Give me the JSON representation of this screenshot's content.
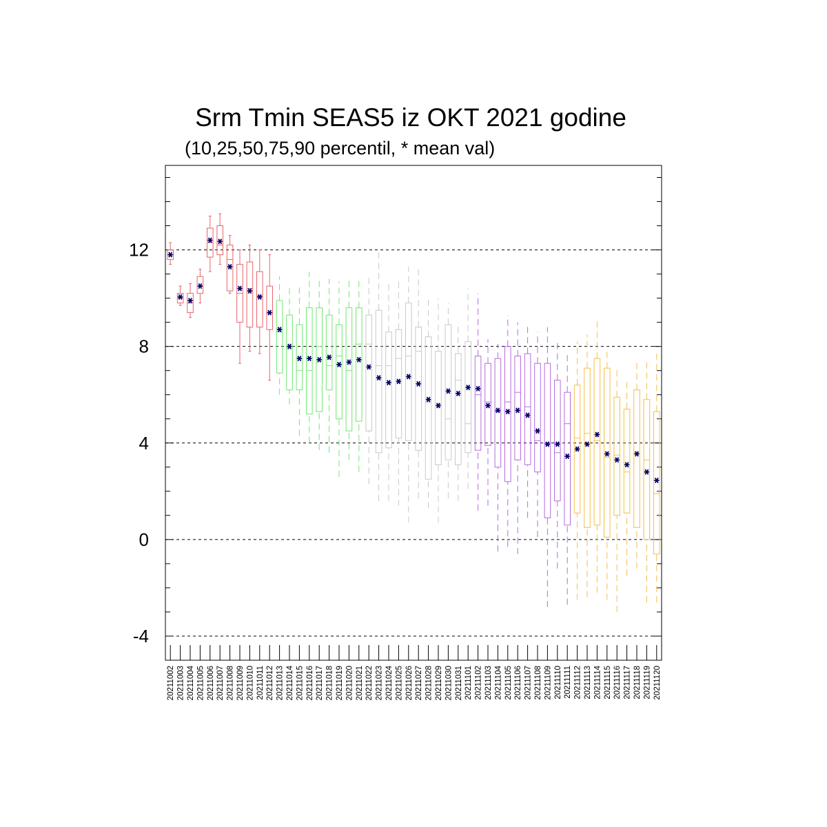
{
  "chart_data": {
    "type": "boxplot",
    "title": "Srm Tmin SEAS5 iz OKT 2021 godine",
    "subtitle": "(10,25,50,75,90 percentil, * mean val)",
    "xlabel": "",
    "ylabel": "",
    "ylim": [
      -5,
      15.5
    ],
    "y_ticks": [
      "-4",
      "0",
      "4",
      "8",
      "12"
    ],
    "y_tick_values": [
      -4,
      0,
      4,
      8,
      12
    ],
    "grid": "dashed horizontal lines at labeled ticks",
    "legend": "none",
    "colors": {
      "red": "#e8636b",
      "green": "#6fe86f",
      "grey": "#c8c8c8",
      "purple": "#b56ae0",
      "orange": "#f2be4b",
      "mean": "#000066",
      "axis": "#000000"
    },
    "groups": [
      {
        "color": "red",
        "style": "solid",
        "from": 0,
        "to": 10
      },
      {
        "color": "green",
        "style": "dashed",
        "from": 11,
        "to": 19
      },
      {
        "color": "grey",
        "style": "dashed",
        "from": 20,
        "to": 30
      },
      {
        "color": "purple",
        "style": "dashed",
        "from": 31,
        "to": 40
      },
      {
        "color": "orange",
        "style": "dashed",
        "from": 41,
        "to": 50
      }
    ],
    "categories": [
      "20211002",
      "20211003",
      "20211004",
      "20211005",
      "20211006",
      "20211007",
      "20211008",
      "20211009",
      "20211010",
      "20211011",
      "20211012",
      "20211013",
      "20211014",
      "20211015",
      "20211016",
      "20211017",
      "20211018",
      "20211019",
      "20211020",
      "20211021",
      "20211022",
      "20211023",
      "20211024",
      "20211025",
      "20211026",
      "20211027",
      "20211028",
      "20211029",
      "20211030",
      "20211031",
      "20211101",
      "20211102",
      "20211103",
      "20211104",
      "20211105",
      "20211106",
      "20211107",
      "20211108",
      "20211109",
      "20211110",
      "20211111",
      "20211112",
      "20211113",
      "20211114",
      "20211115",
      "20211116",
      "20211117",
      "20211118",
      "20211119",
      "20211120"
    ],
    "series": [
      {
        "p10": [
          11.4,
          9.7,
          9.2,
          9.8,
          11.1,
          11.4,
          10.2,
          7.3,
          7.8,
          7.7,
          6.6,
          6.0,
          5.6,
          4.3,
          4.0,
          3.7,
          3.6,
          2.6,
          3.3,
          2.8,
          2.3,
          1.6,
          1.6,
          1.4,
          0.7,
          1.7,
          1.3,
          0.7,
          1.7,
          1.6,
          2.1,
          1.2,
          1.4,
          -0.5,
          -0.3,
          -0.6,
          0.9,
          0.1,
          -2.8,
          -1.2,
          -2.7,
          -2.5,
          -2.4,
          -2.2,
          -2.5,
          -3.0,
          -1.5,
          -1.2,
          -2.6,
          -2.6
        ],
        "p25": [
          11.6,
          9.8,
          9.4,
          10.2,
          11.7,
          11.8,
          10.3,
          9.0,
          8.8,
          8.8,
          8.7,
          6.9,
          6.2,
          6.2,
          5.2,
          5.3,
          6.2,
          5.0,
          4.5,
          4.9,
          4.5,
          3.6,
          3.8,
          4.2,
          4.1,
          3.7,
          2.5,
          3.1,
          3.3,
          3.1,
          3.6,
          3.7,
          3.9,
          3.0,
          2.4,
          3.3,
          3.1,
          2.8,
          0.9,
          1.6,
          0.6,
          1.1,
          0.5,
          0.6,
          0.1,
          1.0,
          1.1,
          0.5,
          0.0,
          -0.6
        ],
        "p50": [
          11.8,
          10.0,
          9.8,
          10.5,
          12.3,
          12.2,
          11.6,
          10.2,
          10.4,
          10.1,
          9.4,
          8.6,
          7.9,
          7.0,
          7.0,
          8.0,
          7.2,
          7.6,
          7.0,
          8.1,
          8.1,
          7.2,
          7.2,
          7.5,
          7.6,
          7.8,
          5.7,
          5.6,
          5.0,
          6.6,
          4.8,
          6.0,
          5.7,
          5.3,
          5.7,
          6.1,
          5.5,
          4.1,
          4.0,
          3.6,
          4.8,
          4.2,
          4.4,
          4.1,
          3.4,
          3.5,
          2.8,
          3.6,
          3.3,
          1.9
        ],
        "p75": [
          12.0,
          10.2,
          10.2,
          10.9,
          12.9,
          13.0,
          12.2,
          11.4,
          11.5,
          11.1,
          10.5,
          9.9,
          9.3,
          8.9,
          9.6,
          9.6,
          9.3,
          8.9,
          9.6,
          9.6,
          9.3,
          9.5,
          8.6,
          8.7,
          9.8,
          8.8,
          8.4,
          7.8,
          8.9,
          7.7,
          8.2,
          7.6,
          7.3,
          7.5,
          8.0,
          7.6,
          7.7,
          7.3,
          7.3,
          6.6,
          6.1,
          6.4,
          7.1,
          7.5,
          7.1,
          5.9,
          5.4,
          6.2,
          5.8,
          5.3
        ],
        "p90": [
          12.3,
          10.5,
          10.6,
          11.2,
          13.4,
          13.5,
          12.6,
          12.0,
          12.2,
          12.0,
          11.8,
          10.9,
          10.5,
          10.5,
          11.1,
          10.9,
          10.8,
          10.7,
          10.9,
          10.8,
          10.9,
          11.9,
          10.7,
          10.8,
          11.3,
          11.2,
          10.0,
          10.0,
          9.8,
          9.0,
          10.4,
          10.2,
          8.3,
          8.1,
          9.3,
          9.0,
          8.9,
          8.6,
          8.8,
          8.3,
          7.8,
          8.2,
          8.5,
          9.2,
          8.0,
          7.1,
          6.6,
          7.5,
          7.4,
          7.7
        ],
        "mean": [
          11.8,
          10.05,
          9.9,
          10.5,
          12.4,
          12.35,
          11.3,
          10.4,
          10.3,
          10.05,
          9.4,
          8.7,
          8.0,
          7.5,
          7.5,
          7.45,
          7.55,
          7.25,
          7.35,
          7.45,
          7.15,
          6.7,
          6.5,
          6.55,
          6.75,
          6.45,
          5.8,
          5.55,
          6.15,
          6.05,
          6.3,
          6.25,
          5.55,
          5.35,
          5.3,
          5.35,
          5.15,
          4.5,
          3.95,
          3.95,
          3.45,
          3.75,
          3.95,
          4.35,
          3.55,
          3.3,
          3.1,
          3.55,
          2.8,
          2.45
        ]
      }
    ]
  }
}
